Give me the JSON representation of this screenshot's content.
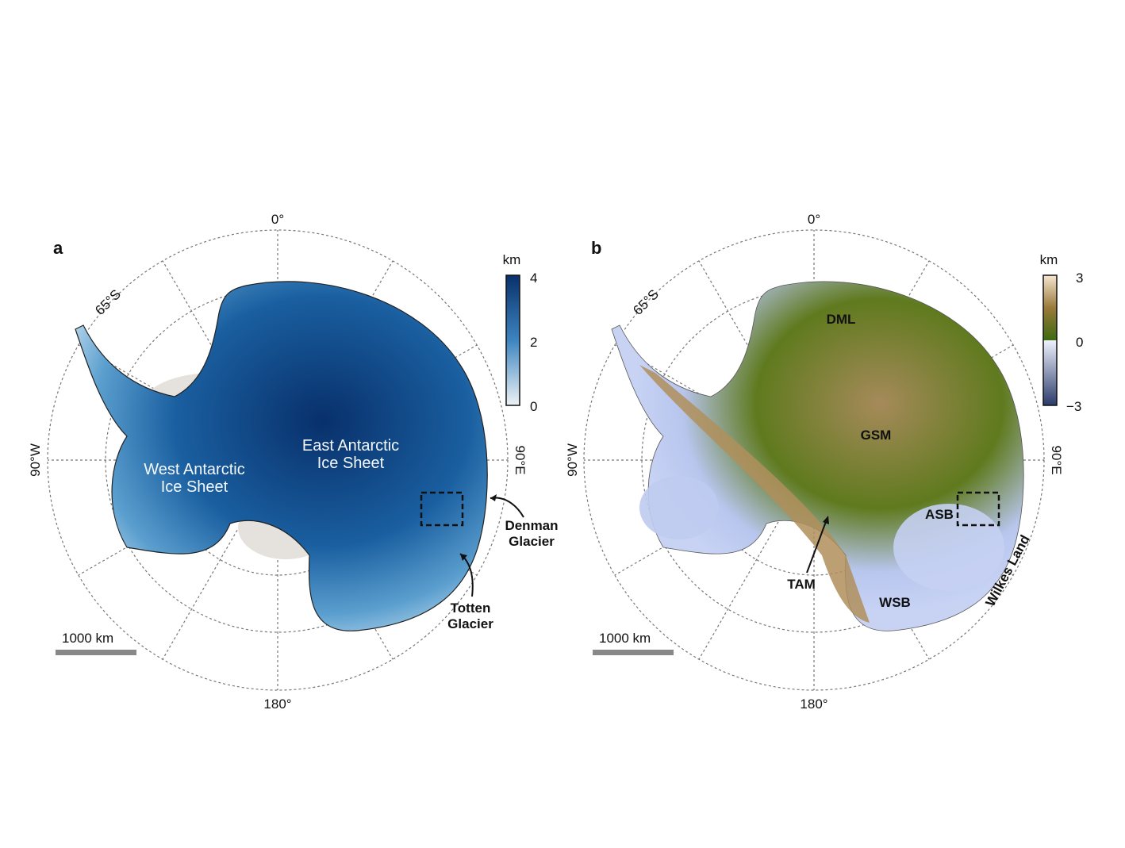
{
  "panel_a": {
    "letter": "a",
    "lat_label": "65°S",
    "lon_labels": {
      "top": "0°",
      "bottom": "180°",
      "left": "90°W",
      "right": "90°E"
    },
    "region_labels": [
      {
        "line1": "East Antarctic",
        "line2": "Ice Sheet"
      },
      {
        "line1": "West Antarctic",
        "line2": "Ice Sheet"
      }
    ],
    "annotations": [
      {
        "line1": "Denman",
        "line2": "Glacier"
      },
      {
        "line1": "Totten",
        "line2": "Glacier"
      }
    ],
    "scale_bar": "1000 km",
    "colorbar": {
      "unit": "km",
      "ticks": [
        "4",
        "2",
        "0"
      ],
      "range": [
        0,
        4
      ],
      "colors": [
        "#eef2f6",
        "#5b9fcf",
        "#08306b"
      ]
    }
  },
  "panel_b": {
    "letter": "b",
    "lat_label": "65°S",
    "lon_labels": {
      "top": "0°",
      "bottom": "180°",
      "left": "90°W",
      "right": "90°E"
    },
    "region_labels": [
      "DML",
      "GSM",
      "ASB",
      "TAM",
      "WSB",
      "Wilkes Land"
    ],
    "scale_bar": "1000 km",
    "colorbar": {
      "unit": "km",
      "ticks": [
        "3",
        "0",
        "−3"
      ],
      "range": [
        -3,
        3
      ],
      "colors": [
        "#2b3a6b",
        "#dde6fa",
        "#3d6a10",
        "#f5e6cf"
      ]
    }
  }
}
